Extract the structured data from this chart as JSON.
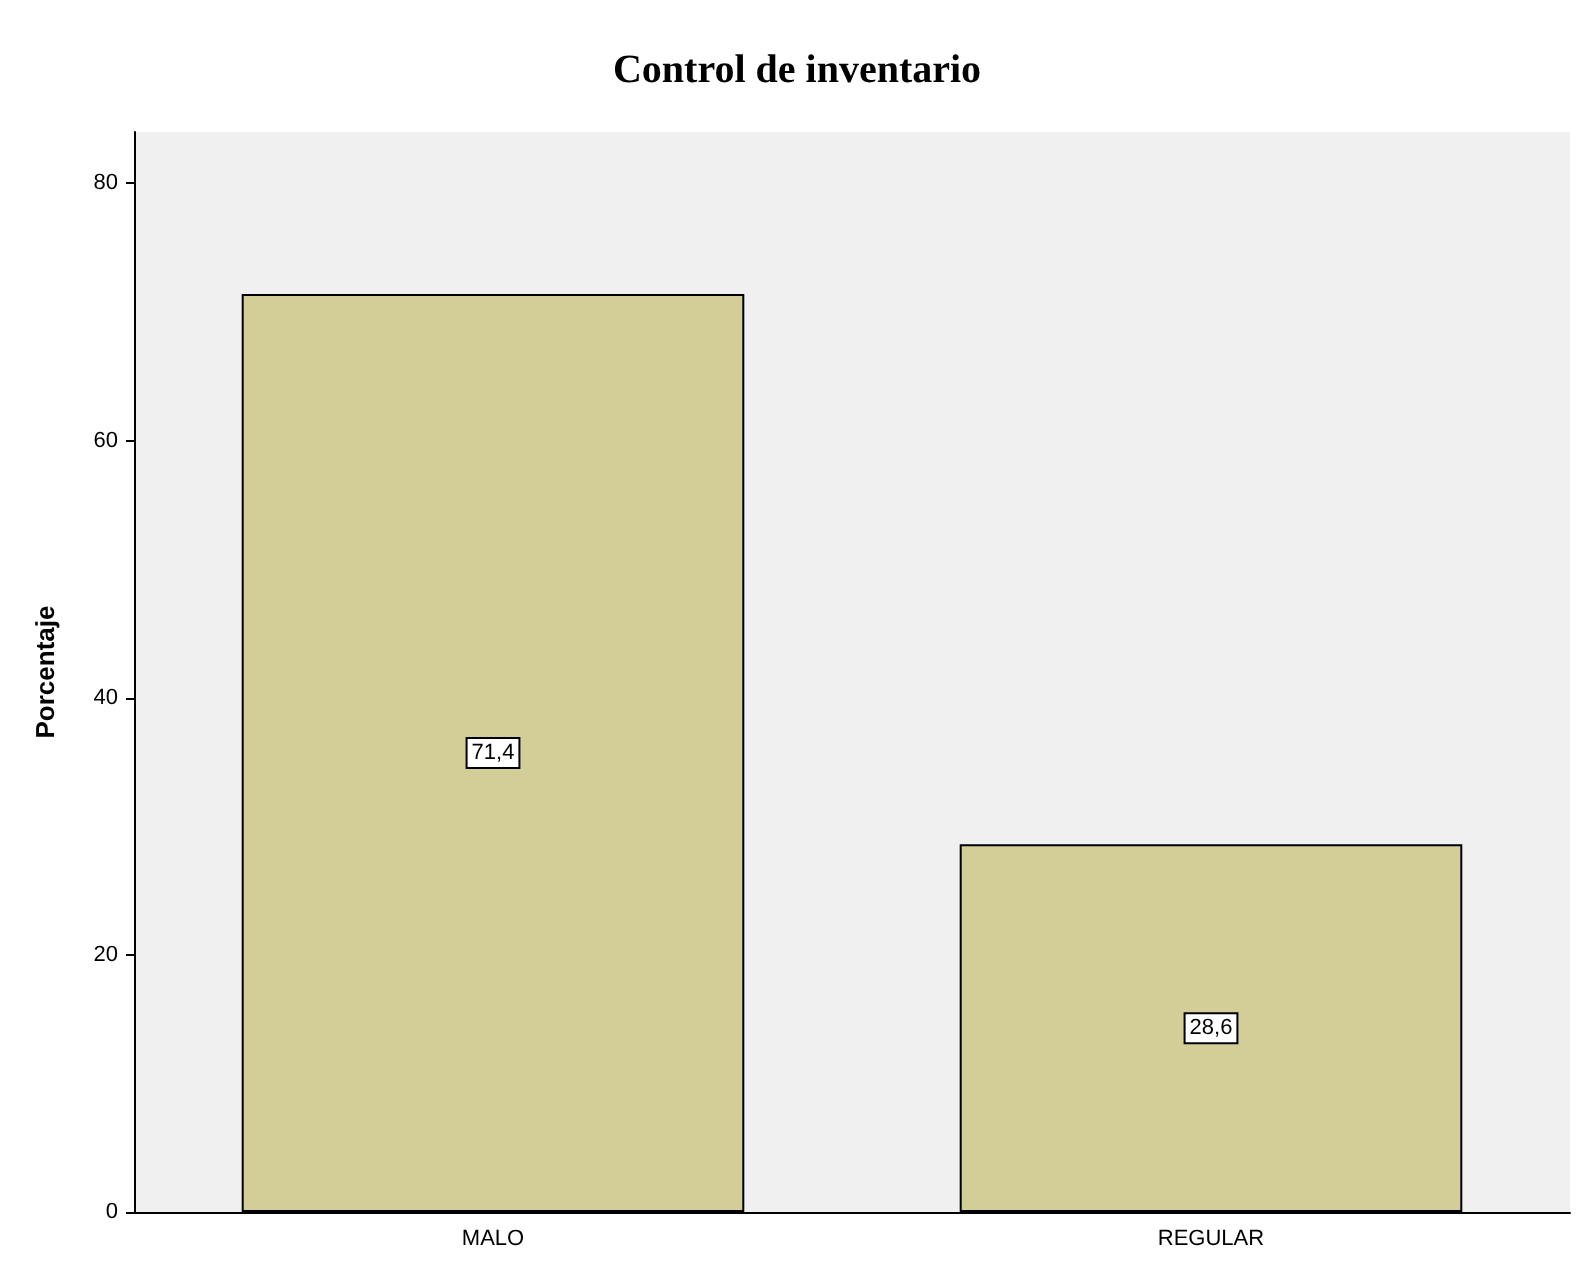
{
  "chart_data": {
    "type": "bar",
    "title": "Control de inventario",
    "ylabel": "Porcentaje",
    "categories": [
      "MALO",
      "REGULAR"
    ],
    "values": [
      71.4,
      28.6
    ],
    "value_labels": [
      "71,4",
      "28,6"
    ],
    "color": "#d3ce97",
    "ylim": [
      0,
      84
    ],
    "yticks": [
      0,
      20,
      40,
      60,
      80
    ],
    "grid": false
  }
}
